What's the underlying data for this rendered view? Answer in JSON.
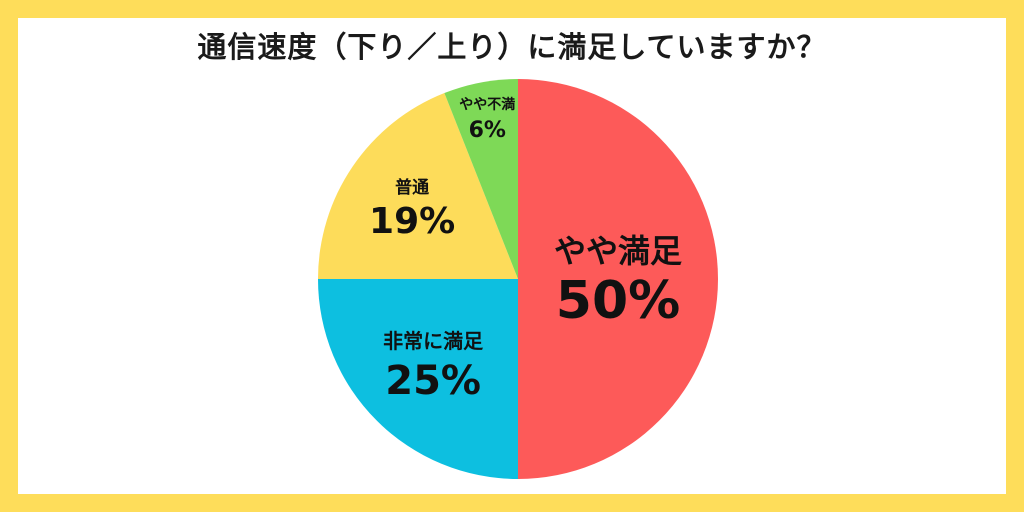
{
  "title": "通信速度（下り／上り）に満足していますか？",
  "colors": {
    "frame": "#fedd5a",
    "background": "#ffffff"
  },
  "chart_data": {
    "type": "pie",
    "title": "通信速度（下り／上り）に満足していますか？",
    "start": "12 o'clock",
    "direction": "clockwise",
    "slices": [
      {
        "label": "やや満足",
        "value": 50,
        "display": "50%",
        "color": "#fd5a59"
      },
      {
        "label": "非常に満足",
        "value": 25,
        "display": "25%",
        "color": "#0dbfe0"
      },
      {
        "label": "普通",
        "value": 19,
        "display": "19%",
        "color": "#fddc5a"
      },
      {
        "label": "やや不満",
        "value": 6,
        "display": "6%",
        "color": "#7ed957"
      }
    ]
  }
}
